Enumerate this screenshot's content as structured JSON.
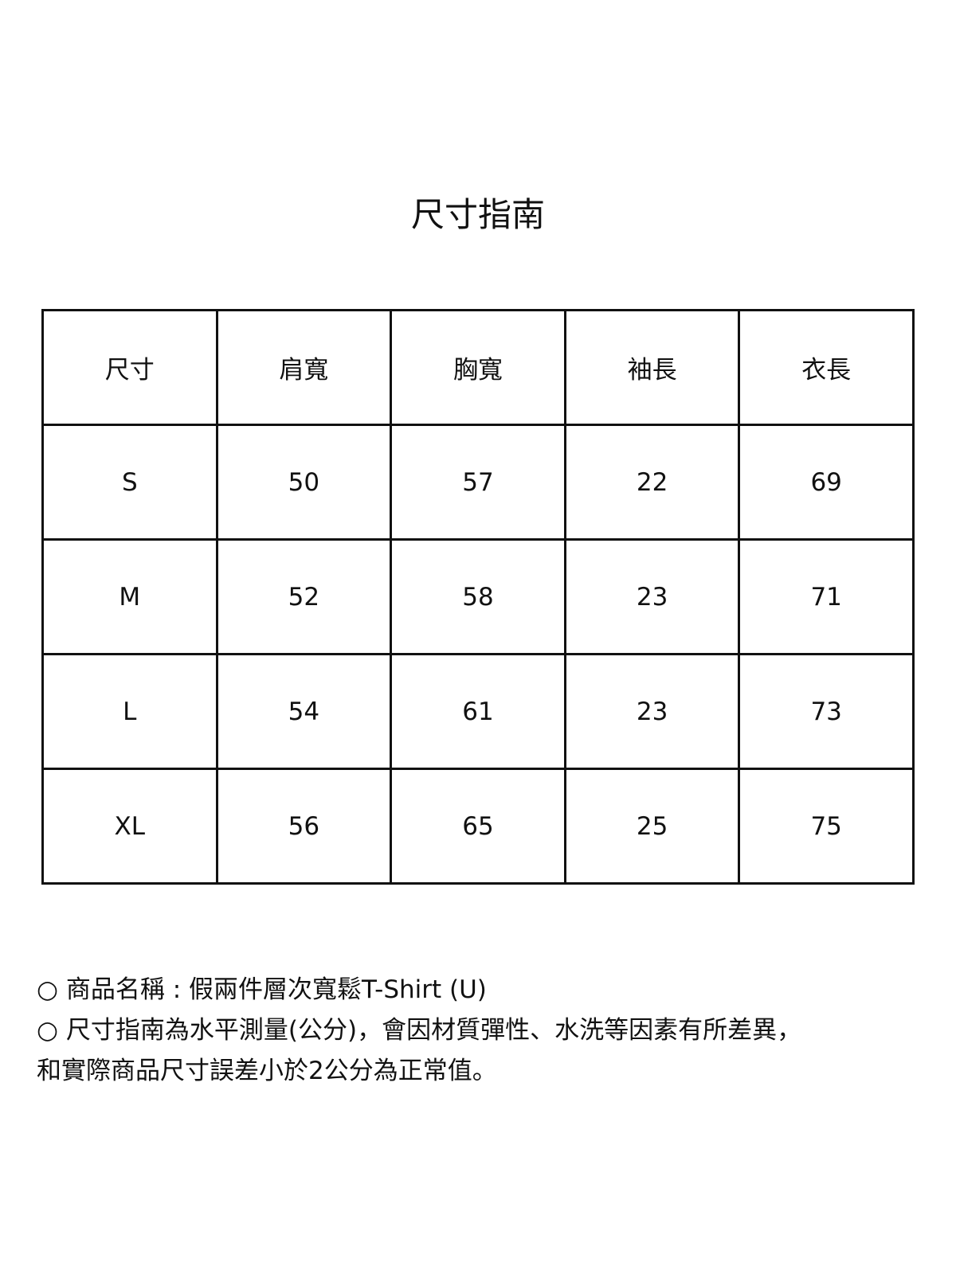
{
  "title": "尺寸指南",
  "table": {
    "headers": [
      "尺寸",
      "肩寬",
      "胸寬",
      "袖長",
      "衣長"
    ],
    "rows": [
      [
        "S",
        "50",
        "57",
        "22",
        "69"
      ],
      [
        "M",
        "52",
        "58",
        "23",
        "71"
      ],
      [
        "L",
        "54",
        "61",
        "23",
        "73"
      ],
      [
        "XL",
        "56",
        "65",
        "25",
        "75"
      ]
    ]
  },
  "notes": [
    "○ 商品名稱 : 假兩件層次寬鬆T-Shirt (U)",
    "○ 尺寸指南為水平測量(公分)，會因材質彈性、水洗等因素有所差異，",
    "和實際商品尺寸誤差小於2公分為正常值。"
  ]
}
